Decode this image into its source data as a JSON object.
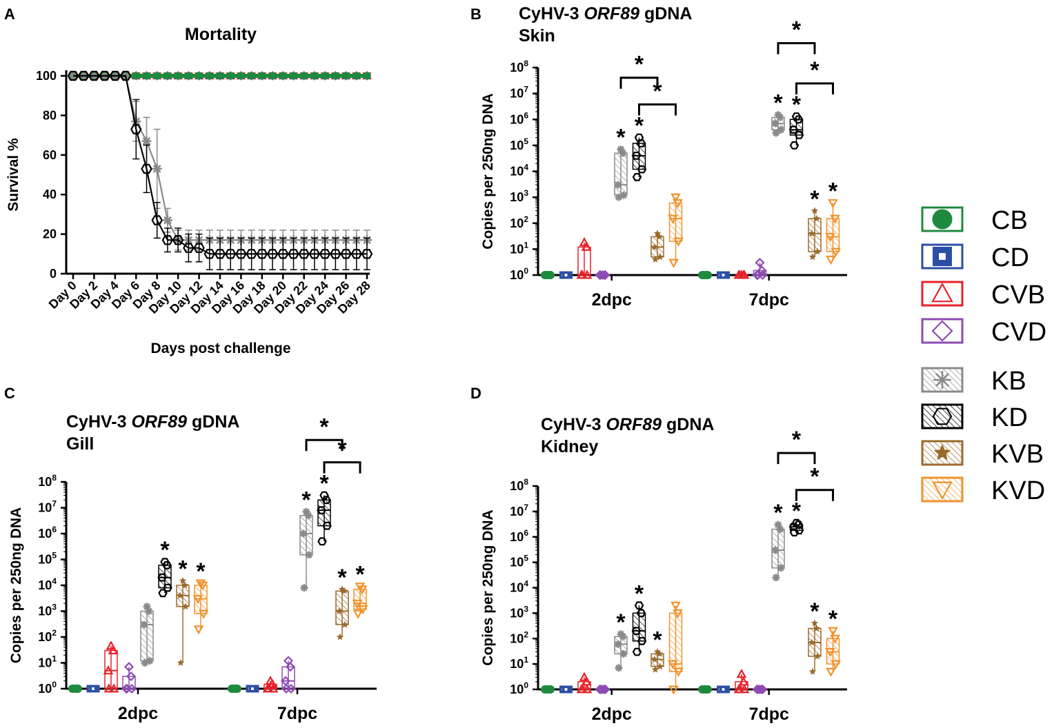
{
  "legend": [
    {
      "key": "CB",
      "label": "CB",
      "color": "#1e8a3e",
      "marker": "circle",
      "hatch": "none"
    },
    {
      "key": "CD",
      "label": "CD",
      "color": "#2c4fa6",
      "marker": "square",
      "hatch": "none"
    },
    {
      "key": "CVB",
      "label": "CVB",
      "color": "#e8202a",
      "marker": "triangle-up",
      "hatch": "none"
    },
    {
      "key": "CVD",
      "label": "CVD",
      "color": "#8e4bb3",
      "marker": "diamond",
      "hatch": "none"
    },
    {
      "key": "KB",
      "label": "KB",
      "color": "#8a8a8a",
      "marker": "asterisk",
      "hatch": "diagonal"
    },
    {
      "key": "KD",
      "label": "KD",
      "color": "#000000",
      "marker": "hexagon",
      "hatch": "diagonal"
    },
    {
      "key": "KVB",
      "label": "KVB",
      "color": "#9a6a2c",
      "marker": "star",
      "hatch": "diagonal"
    },
    {
      "key": "KVD",
      "label": "KVD",
      "color": "#f0922b",
      "marker": "triangle-down",
      "hatch": "diagonal"
    }
  ],
  "chart_data": [
    {
      "panel": "A",
      "type": "line",
      "title": "Mortality",
      "xlabel": "Days post challenge",
      "ylabel": "Survival %",
      "ylim": [
        0,
        100
      ],
      "yticks": [
        0,
        20,
        40,
        60,
        80,
        100
      ],
      "x": [
        0,
        1,
        2,
        3,
        4,
        5,
        6,
        7,
        8,
        9,
        10,
        11,
        12,
        13,
        14,
        15,
        16,
        17,
        18,
        19,
        20,
        21,
        22,
        23,
        24,
        25,
        26,
        27,
        28
      ],
      "xtick_labels": [
        "Day 0",
        "Day 2",
        "Day 4",
        "Day 6",
        "Day 8",
        "Day 10",
        "Day 12",
        "Day 14",
        "Day 16",
        "Day 18",
        "Day 20",
        "Day 22",
        "Day 24",
        "Day 26",
        "Day 28"
      ],
      "series": [
        {
          "name": "CB",
          "values": [
            100,
            100,
            100,
            100,
            100,
            100,
            100,
            100,
            100,
            100,
            100,
            100,
            100,
            100,
            100,
            100,
            100,
            100,
            100,
            100,
            100,
            100,
            100,
            100,
            100,
            100,
            100,
            100,
            100
          ]
        },
        {
          "name": "CD",
          "values": [
            100,
            100,
            100,
            100,
            100,
            100,
            100,
            100,
            100,
            100,
            100,
            100,
            100,
            100,
            100,
            100,
            100,
            100,
            100,
            100,
            100,
            100,
            100,
            100,
            100,
            100,
            100,
            100,
            100
          ]
        },
        {
          "name": "CVB",
          "values": [
            100,
            100,
            100,
            100,
            100,
            100,
            100,
            100,
            100,
            100,
            100,
            100,
            100,
            100,
            100,
            100,
            100,
            100,
            100,
            100,
            100,
            100,
            100,
            100,
            100,
            100,
            100,
            100,
            100
          ]
        },
        {
          "name": "CVD",
          "values": [
            100,
            100,
            100,
            100,
            100,
            100,
            100,
            100,
            100,
            100,
            100,
            100,
            100,
            100,
            100,
            100,
            100,
            100,
            100,
            100,
            100,
            100,
            100,
            100,
            100,
            100,
            100,
            100,
            100
          ]
        },
        {
          "name": "KVB",
          "values": [
            100,
            100,
            100,
            100,
            100,
            100,
            100,
            100,
            100,
            100,
            100,
            100,
            100,
            100,
            100,
            100,
            100,
            100,
            100,
            100,
            100,
            100,
            100,
            100,
            100,
            100,
            100,
            100,
            100
          ]
        },
        {
          "name": "KVD",
          "values": [
            100,
            100,
            100,
            100,
            100,
            100,
            100,
            100,
            100,
            100,
            100,
            100,
            100,
            100,
            100,
            100,
            100,
            100,
            100,
            100,
            100,
            100,
            100,
            100,
            100,
            100,
            100,
            100,
            100
          ]
        },
        {
          "name": "KB",
          "values": [
            100,
            100,
            100,
            100,
            100,
            100,
            77,
            67,
            53,
            27,
            17,
            17,
            17,
            17,
            17,
            17,
            17,
            17,
            17,
            17,
            17,
            17,
            17,
            17,
            17,
            17,
            17,
            17,
            17
          ],
          "errors": [
            0,
            0,
            0,
            0,
            0,
            0,
            10,
            12,
            20,
            6,
            5,
            5,
            5,
            5,
            5,
            5,
            5,
            5,
            5,
            5,
            5,
            5,
            5,
            5,
            5,
            5,
            5,
            5,
            5
          ]
        },
        {
          "name": "KD",
          "values": [
            100,
            100,
            100,
            100,
            100,
            100,
            73,
            53,
            27,
            17,
            17,
            13,
            13,
            10,
            10,
            10,
            10,
            10,
            10,
            10,
            10,
            10,
            10,
            10,
            10,
            10,
            10,
            10,
            10
          ],
          "errors": [
            0,
            0,
            0,
            0,
            0,
            0,
            15,
            12,
            9,
            6,
            6,
            7,
            7,
            8,
            8,
            8,
            8,
            8,
            8,
            8,
            8,
            8,
            8,
            8,
            8,
            8,
            8,
            8,
            8
          ]
        }
      ]
    },
    {
      "panel": "B",
      "type": "box",
      "title_parts": [
        "CyHV-3 ",
        "ORF89",
        " gDNA"
      ],
      "subtitle": "Skin",
      "ylabel": "Copies per 250ng DNA",
      "yscale": "log",
      "ylim": [
        1,
        100000000
      ],
      "ytick_exponents": [
        0,
        1,
        2,
        3,
        4,
        5,
        6,
        7,
        8
      ],
      "categories": [
        "2dpc",
        "7dpc"
      ],
      "groups": [
        {
          "cat": "2dpc",
          "name": "CB",
          "min": 1,
          "q1": 1,
          "median": 1,
          "q3": 1,
          "max": 1
        },
        {
          "cat": "2dpc",
          "name": "CD",
          "min": 1,
          "q1": 1,
          "median": 1,
          "q3": 1,
          "max": 1
        },
        {
          "cat": "2dpc",
          "name": "CVB",
          "min": 1,
          "q1": 1,
          "median": 1,
          "q3": 12,
          "max": 18
        },
        {
          "cat": "2dpc",
          "name": "CVD",
          "min": 1,
          "q1": 1,
          "median": 1,
          "q3": 1,
          "max": 1
        },
        {
          "cat": "2dpc",
          "name": "KB",
          "min": 1000,
          "q1": 1200,
          "median": 3000,
          "q3": 50000,
          "max": 70000,
          "sig": "*"
        },
        {
          "cat": "2dpc",
          "name": "KD",
          "min": 6000,
          "q1": 12000,
          "median": 40000,
          "q3": 120000,
          "max": 200000,
          "sig": "*"
        },
        {
          "cat": "2dpc",
          "name": "KVB",
          "min": 4,
          "q1": 5,
          "median": 12,
          "q3": 30,
          "max": 40
        },
        {
          "cat": "2dpc",
          "name": "KVD",
          "min": 3,
          "q1": 20,
          "median": 150,
          "q3": 600,
          "max": 1000
        },
        {
          "cat": "7dpc",
          "name": "CB",
          "min": 1,
          "q1": 1,
          "median": 1,
          "q3": 1,
          "max": 1
        },
        {
          "cat": "7dpc",
          "name": "CD",
          "min": 1,
          "q1": 1,
          "median": 1,
          "q3": 1,
          "max": 1
        },
        {
          "cat": "7dpc",
          "name": "CVB",
          "min": 1,
          "q1": 1,
          "median": 1,
          "q3": 1,
          "max": 1
        },
        {
          "cat": "7dpc",
          "name": "CVD",
          "min": 1,
          "q1": 1,
          "median": 1,
          "q3": 1.5,
          "max": 3
        },
        {
          "cat": "7dpc",
          "name": "KB",
          "min": 300000,
          "q1": 400000,
          "median": 700000,
          "q3": 1200000,
          "max": 1500000,
          "sig": "*"
        },
        {
          "cat": "7dpc",
          "name": "KD",
          "min": 100000,
          "q1": 250000,
          "median": 400000,
          "q3": 1000000,
          "max": 1300000,
          "sig": "*"
        },
        {
          "cat": "7dpc",
          "name": "KVB",
          "min": 5,
          "q1": 8,
          "median": 40,
          "q3": 150,
          "max": 300,
          "sig": "*"
        },
        {
          "cat": "7dpc",
          "name": "KVD",
          "min": 4,
          "q1": 8,
          "median": 30,
          "q3": 150,
          "max": 600,
          "sig": "*"
        }
      ],
      "brackets": [
        {
          "cat": "2dpc",
          "from": "KB",
          "to": "KVB",
          "label": "*"
        },
        {
          "cat": "2dpc",
          "from": "KD",
          "to": "KVD",
          "label": "*"
        },
        {
          "cat": "7dpc",
          "from": "KB",
          "to": "KVB",
          "label": "*"
        },
        {
          "cat": "7dpc",
          "from": "KD",
          "to": "KVD",
          "label": "*"
        }
      ]
    },
    {
      "panel": "C",
      "type": "box",
      "title_parts": [
        "CyHV-3 ",
        "ORF89",
        " gDNA"
      ],
      "subtitle": "Gill",
      "ylabel": "Copies per 250ng DNA",
      "yscale": "log",
      "ylim": [
        1,
        100000000
      ],
      "ytick_exponents": [
        0,
        1,
        2,
        3,
        4,
        5,
        6,
        7,
        8
      ],
      "categories": [
        "2dpc",
        "7dpc"
      ],
      "groups": [
        {
          "cat": "2dpc",
          "name": "CB",
          "min": 1,
          "q1": 1,
          "median": 1,
          "q3": 1,
          "max": 1
        },
        {
          "cat": "2dpc",
          "name": "CD",
          "min": 1,
          "q1": 1,
          "median": 1,
          "q3": 1,
          "max": 1
        },
        {
          "cat": "2dpc",
          "name": "CVB",
          "min": 1,
          "q1": 1,
          "median": 5,
          "q3": 30,
          "max": 45
        },
        {
          "cat": "2dpc",
          "name": "CVD",
          "min": 1,
          "q1": 1,
          "median": 1,
          "q3": 3,
          "max": 7
        },
        {
          "cat": "2dpc",
          "name": "KB",
          "min": 10,
          "q1": 12,
          "median": 300,
          "q3": 1000,
          "max": 1500
        },
        {
          "cat": "2dpc",
          "name": "KD",
          "min": 5000,
          "q1": 8000,
          "median": 20000,
          "q3": 60000,
          "max": 80000,
          "sig": "*"
        },
        {
          "cat": "2dpc",
          "name": "KVB",
          "min": 10,
          "q1": 1500,
          "median": 4000,
          "q3": 10000,
          "max": 15000,
          "sig": "*"
        },
        {
          "cat": "2dpc",
          "name": "KVD",
          "min": 200,
          "q1": 800,
          "median": 3000,
          "q3": 10000,
          "max": 12000,
          "sig": "*"
        },
        {
          "cat": "7dpc",
          "name": "CB",
          "min": 1,
          "q1": 1,
          "median": 1,
          "q3": 1,
          "max": 1
        },
        {
          "cat": "7dpc",
          "name": "CD",
          "min": 1,
          "q1": 1,
          "median": 1,
          "q3": 1,
          "max": 1
        },
        {
          "cat": "7dpc",
          "name": "CVB",
          "min": 1,
          "q1": 1,
          "median": 1,
          "q3": 1.5,
          "max": 2
        },
        {
          "cat": "7dpc",
          "name": "CVD",
          "min": 1,
          "q1": 1,
          "median": 2,
          "q3": 7,
          "max": 12
        },
        {
          "cat": "7dpc",
          "name": "KB",
          "min": 8000,
          "q1": 150000,
          "median": 1000000,
          "q3": 5000000,
          "max": 7000000,
          "sig": "*"
        },
        {
          "cat": "7dpc",
          "name": "KD",
          "min": 500000,
          "q1": 2000000,
          "median": 8000000,
          "q3": 20000000,
          "max": 30000000,
          "sig": "*"
        },
        {
          "cat": "7dpc",
          "name": "KVB",
          "min": 100,
          "q1": 300,
          "median": 1000,
          "q3": 6000,
          "max": 7000,
          "sig": "*"
        },
        {
          "cat": "7dpc",
          "name": "KVD",
          "min": 800,
          "q1": 1200,
          "median": 2000,
          "q3": 7000,
          "max": 9000,
          "sig": "*"
        }
      ],
      "brackets": [
        {
          "cat": "7dpc",
          "from": "KB",
          "to": "KVB",
          "label": "*"
        },
        {
          "cat": "7dpc",
          "from": "KD",
          "to": "KVD",
          "label": "*"
        }
      ]
    },
    {
      "panel": "D",
      "type": "box",
      "title_parts": [
        "CyHV-3 ",
        "ORF89",
        " gDNA"
      ],
      "subtitle": "Kidney",
      "ylabel": "Copies per 250ng DNA",
      "yscale": "log",
      "ylim": [
        1,
        100000000
      ],
      "ytick_exponents": [
        0,
        1,
        2,
        3,
        4,
        5,
        6,
        7,
        8
      ],
      "categories": [
        "2dpc",
        "7dpc"
      ],
      "groups": [
        {
          "cat": "2dpc",
          "name": "CB",
          "min": 1,
          "q1": 1,
          "median": 1,
          "q3": 1,
          "max": 1
        },
        {
          "cat": "2dpc",
          "name": "CD",
          "min": 1,
          "q1": 1,
          "median": 1,
          "q3": 1,
          "max": 1
        },
        {
          "cat": "2dpc",
          "name": "CVB",
          "min": 1,
          "q1": 1,
          "median": 1,
          "q3": 2,
          "max": 3
        },
        {
          "cat": "2dpc",
          "name": "CVD",
          "min": 1,
          "q1": 1,
          "median": 1,
          "q3": 1,
          "max": 1
        },
        {
          "cat": "2dpc",
          "name": "KB",
          "min": 7,
          "q1": 25,
          "median": 60,
          "q3": 120,
          "max": 150,
          "sig": "*"
        },
        {
          "cat": "2dpc",
          "name": "KD",
          "min": 30,
          "q1": 80,
          "median": 200,
          "q3": 1000,
          "max": 2000,
          "sig": "*"
        },
        {
          "cat": "2dpc",
          "name": "KVB",
          "min": 6,
          "q1": 8,
          "median": 15,
          "q3": 25,
          "max": 30,
          "sig": "*"
        },
        {
          "cat": "2dpc",
          "name": "KVD",
          "min": 1,
          "q1": 5,
          "median": 10,
          "q3": 1000,
          "max": 2000
        },
        {
          "cat": "7dpc",
          "name": "CB",
          "min": 1,
          "q1": 1,
          "median": 1,
          "q3": 1,
          "max": 1
        },
        {
          "cat": "7dpc",
          "name": "CD",
          "min": 1,
          "q1": 1,
          "median": 1,
          "q3": 1,
          "max": 1
        },
        {
          "cat": "7dpc",
          "name": "CVB",
          "min": 1,
          "q1": 1,
          "median": 1,
          "q3": 2,
          "max": 4
        },
        {
          "cat": "7dpc",
          "name": "CVD",
          "min": 1,
          "q1": 1,
          "median": 1,
          "q3": 1,
          "max": 1
        },
        {
          "cat": "7dpc",
          "name": "KB",
          "min": 25000,
          "q1": 60000,
          "median": 300000,
          "q3": 2000000,
          "max": 3000000,
          "sig": "*"
        },
        {
          "cat": "7dpc",
          "name": "KD",
          "min": 1500000,
          "q1": 1800000,
          "median": 2500000,
          "q3": 3000000,
          "max": 3500000,
          "sig": "*"
        },
        {
          "cat": "7dpc",
          "name": "KVB",
          "min": 5,
          "q1": 20,
          "median": 70,
          "q3": 250,
          "max": 400,
          "sig": "*"
        },
        {
          "cat": "7dpc",
          "name": "KVD",
          "min": 5,
          "q1": 10,
          "median": 30,
          "q3": 100,
          "max": 200,
          "sig": "*"
        }
      ],
      "brackets": [
        {
          "cat": "7dpc",
          "from": "KB",
          "to": "KVB",
          "label": "*"
        },
        {
          "cat": "7dpc",
          "from": "KD",
          "to": "KVD",
          "label": "*"
        }
      ]
    }
  ]
}
